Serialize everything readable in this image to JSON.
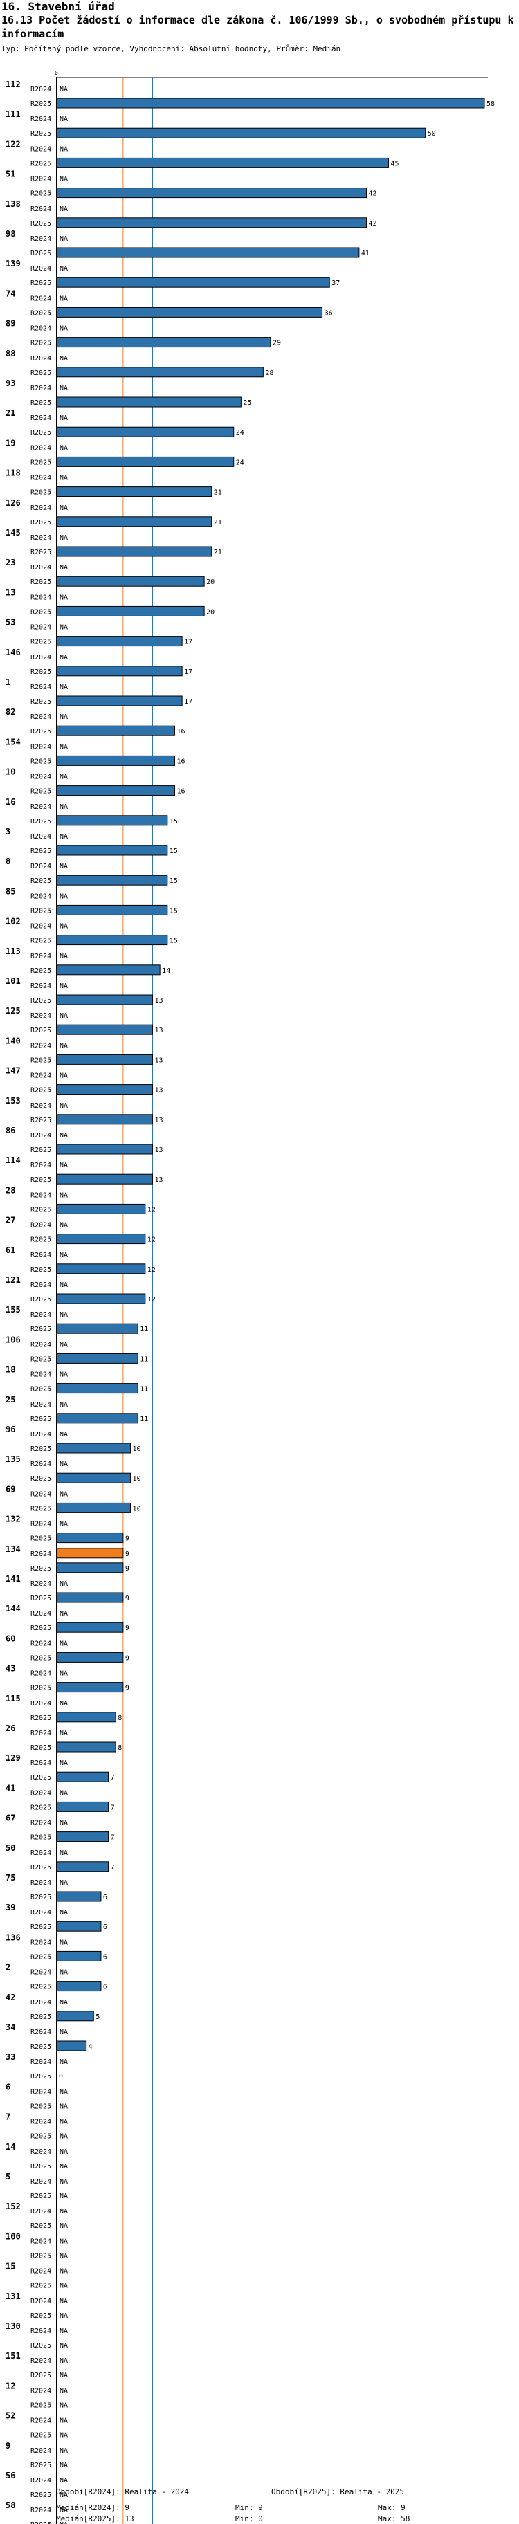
{
  "section_title": "16. Stavební úřad",
  "chart_title": "16.13 Počet žádostí o informace dle zákona č. 106/1999 Sb., o svobodném přístupu k informacím",
  "chart_subtitle": "Typ: Počítaný podle vzorce, Vyhodnocení: Absolutní hodnoty, Průměr: Medián",
  "colors": {
    "bar": "#2d72aa",
    "highlight": "#f07c1e",
    "median2024": "#f07c1e",
    "median2025": "#2d72aa",
    "axis": "#000000"
  },
  "chart_data": {
    "type": "bar",
    "orientation": "horizontal",
    "highlight_category": "134",
    "xlim": [
      0,
      58
    ],
    "series": [
      {
        "name": "R2024",
        "row_label": "R2024"
      },
      {
        "name": "R2025",
        "row_label": "R2025"
      }
    ],
    "missing_label": "NA",
    "categories": [
      "112",
      "111",
      "122",
      "51",
      "138",
      "98",
      "139",
      "74",
      "89",
      "88",
      "93",
      "21",
      "19",
      "118",
      "126",
      "145",
      "23",
      "13",
      "53",
      "146",
      "1",
      "82",
      "154",
      "10",
      "16",
      "3",
      "8",
      "85",
      "102",
      "113",
      "101",
      "125",
      "140",
      "147",
      "153",
      "86",
      "114",
      "28",
      "27",
      "61",
      "121",
      "155",
      "106",
      "18",
      "25",
      "96",
      "135",
      "69",
      "132",
      "134",
      "141",
      "144",
      "60",
      "43",
      "115",
      "26",
      "129",
      "41",
      "67",
      "50",
      "75",
      "39",
      "136",
      "2",
      "42",
      "34",
      "33",
      "6",
      "7",
      "14",
      "5",
      "152",
      "100",
      "15",
      "131",
      "130",
      "151",
      "12",
      "52",
      "9",
      "56",
      "58"
    ],
    "values_r2024": [
      null,
      null,
      null,
      null,
      null,
      null,
      null,
      null,
      null,
      null,
      null,
      null,
      null,
      null,
      null,
      null,
      null,
      null,
      null,
      null,
      null,
      null,
      null,
      null,
      null,
      null,
      null,
      null,
      null,
      null,
      null,
      null,
      null,
      null,
      null,
      null,
      null,
      null,
      null,
      null,
      null,
      null,
      null,
      null,
      null,
      null,
      null,
      null,
      null,
      9,
      null,
      null,
      null,
      null,
      null,
      null,
      null,
      null,
      null,
      null,
      null,
      null,
      null,
      null,
      null,
      null,
      null,
      null,
      null,
      null,
      null,
      null,
      null,
      null,
      null,
      null,
      null,
      null,
      null,
      null,
      null,
      null
    ],
    "values_r2025": [
      58,
      50,
      45,
      42,
      42,
      41,
      37,
      36,
      29,
      28,
      25,
      24,
      24,
      21,
      21,
      21,
      20,
      20,
      17,
      17,
      17,
      16,
      16,
      16,
      15,
      15,
      15,
      15,
      15,
      14,
      13,
      13,
      13,
      13,
      13,
      13,
      13,
      12,
      12,
      12,
      12,
      11,
      11,
      11,
      11,
      10,
      10,
      10,
      9,
      9,
      9,
      9,
      9,
      9,
      8,
      8,
      7,
      7,
      7,
      7,
      6,
      6,
      6,
      6,
      5,
      4,
      0,
      null,
      null,
      null,
      null,
      null,
      null,
      null,
      null,
      null,
      null,
      null,
      null,
      null,
      null,
      null
    ]
  },
  "zero_tick": "0",
  "legend": {
    "period_2024": "Období[R2024]: Realita - 2024",
    "period_2025": "Období[R2025]: Realita - 2025",
    "median_2024": "Medián[R2024]: 9",
    "median_2025": "Medián[R2025]: 13",
    "min_2024": "Min: 9",
    "min_2025": "Min: 0",
    "max_2024": "Max: 9",
    "max_2025": "Max: 58"
  },
  "medians": {
    "r2024": 9,
    "r2025": 13
  }
}
